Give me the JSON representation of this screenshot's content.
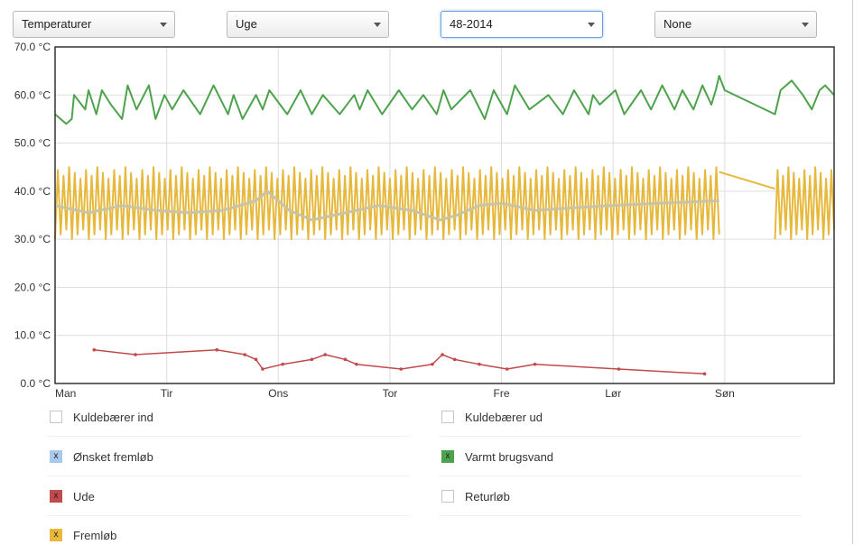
{
  "filters": [
    {
      "value": "Temperaturer"
    },
    {
      "value": "Uge"
    },
    {
      "value": "48-2014"
    },
    {
      "value": "None"
    }
  ],
  "colors": {
    "green": "#4ca34c",
    "yellow": "#e6b83c",
    "red": "#c24a4a",
    "light_blue": "#a8c8ec",
    "avg_line": "#c9c4a6",
    "focus_border": "#6aa0dc"
  },
  "legend": [
    {
      "label": "Kuldebærer ind",
      "checked": false,
      "color": ""
    },
    {
      "label": "Kuldebærer ud",
      "checked": false,
      "color": ""
    },
    {
      "label": "Ønsket fremløb",
      "checked": true,
      "color": "#a8c8ec",
      "mark": "x"
    },
    {
      "label": "Varmt brugsvand",
      "checked": true,
      "color": "#4ca34c",
      "mark": "x"
    },
    {
      "label": "Ude",
      "checked": true,
      "color": "#c24a4a",
      "mark": "x"
    },
    {
      "label": "Returløb",
      "checked": false,
      "color": ""
    },
    {
      "label": "Fremløb",
      "checked": true,
      "color": "#e6b83c",
      "mark": "x"
    }
  ],
  "chart_data": {
    "type": "line",
    "x_tick_labels": [
      "Man",
      "Tir",
      "Ons",
      "Tor",
      "Fre",
      "Lør",
      "Søn"
    ],
    "y_tick_labels": [
      "0.0 °C",
      "10.0 °C",
      "20.0 °C",
      "30.0 °C",
      "40.0 °C",
      "50.0 °C",
      "60.0 °C",
      "70.0 °C"
    ],
    "ylim": [
      0,
      70
    ],
    "xlim_days": [
      0,
      6.98
    ],
    "grid": true,
    "series": [
      {
        "name": "Varmt brugsvand",
        "color": "#4ca34c",
        "x": [
          0,
          0.1,
          0.15,
          0.17,
          0.27,
          0.3,
          0.37,
          0.42,
          0.5,
          0.6,
          0.65,
          0.73,
          0.84,
          0.9,
          0.98,
          1.05,
          1.15,
          1.3,
          1.42,
          1.55,
          1.6,
          1.68,
          1.8,
          1.86,
          1.92,
          2.08,
          2.2,
          2.3,
          2.4,
          2.55,
          2.68,
          2.73,
          2.8,
          2.93,
          3.08,
          3.2,
          3.3,
          3.42,
          3.48,
          3.55,
          3.72,
          3.85,
          3.93,
          4.05,
          4.12,
          4.25,
          4.42,
          4.55,
          4.65,
          4.78,
          4.82,
          4.88,
          5.02,
          5.1,
          5.25,
          5.34,
          5.44,
          5.55,
          5.62,
          5.72,
          5.8,
          5.88,
          5.92,
          5.95,
          6.0,
          6.45,
          6.5,
          6.6,
          6.7,
          6.78,
          6.85,
          6.9,
          6.98
        ],
        "values": [
          56,
          54,
          55,
          60,
          57,
          61,
          56,
          61,
          58,
          55,
          62,
          57,
          62,
          55,
          60,
          57,
          61,
          56,
          62,
          56,
          60,
          55,
          60,
          57,
          61,
          56,
          61,
          56,
          60,
          56,
          60,
          57,
          61,
          56,
          61,
          57,
          60,
          56,
          61,
          57,
          61,
          55,
          61,
          56,
          62,
          57,
          60,
          56,
          61,
          56,
          60,
          58,
          61,
          56,
          61,
          57,
          62,
          57,
          61,
          57,
          62,
          58,
          61,
          64,
          61,
          56,
          61,
          63,
          60,
          57,
          61,
          62,
          60
        ]
      },
      {
        "name": "Fremløb",
        "color": "#e6b83c",
        "oscillation": {
          "x_start": 0,
          "x_end": 5.95,
          "cycles": 118,
          "low": 30,
          "high": 45,
          "gap_start": 5.95,
          "gap_end": 6.45,
          "x_resume": 6.45,
          "x_stop": 6.98
        }
      },
      {
        "name": "Fremløb average",
        "color": "#c9c4a6",
        "x": [
          0,
          0.3,
          0.6,
          0.9,
          1.2,
          1.5,
          1.8,
          1.9,
          2.0,
          2.1,
          2.3,
          2.5,
          2.7,
          2.9,
          3.2,
          3.45,
          3.6,
          3.8,
          4.0,
          4.3,
          4.6,
          5.0,
          5.4,
          5.95
        ],
        "values": [
          37,
          35.5,
          37,
          36,
          35.5,
          36,
          38,
          40,
          38,
          36,
          34,
          35,
          36,
          37,
          36,
          34,
          35,
          37,
          37.5,
          36,
          36.5,
          37,
          37.5,
          38
        ]
      },
      {
        "name": "Ude",
        "color": "#c24a4a",
        "x": [
          0.35,
          0.72,
          1.45,
          1.7,
          1.8,
          1.86,
          2.04,
          2.3,
          2.42,
          2.6,
          2.7,
          3.1,
          3.38,
          3.47,
          3.58,
          3.8,
          4.05,
          4.3,
          5.05,
          5.82
        ],
        "values": [
          7,
          6,
          7,
          6,
          5,
          3,
          4,
          5,
          6,
          5,
          4,
          3,
          4,
          6,
          5,
          4,
          3,
          4,
          3,
          2
        ]
      }
    ]
  }
}
